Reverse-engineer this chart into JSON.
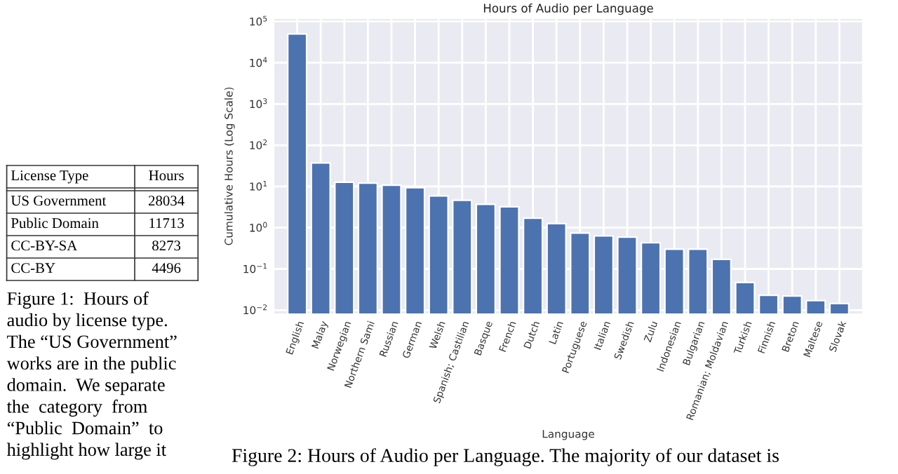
{
  "chart_data": [
    {
      "type": "other",
      "annotations": [
        "License Type",
        "Hours",
        "US Government",
        "28034",
        "Public Domain",
        "11713",
        "CC-BY-SA",
        "8273",
        "CC-BY",
        "4496",
        "Figure 1:  Hours of",
        "audio by license type.",
        "The “US Government”",
        "works are in the public",
        "domain.  We separate",
        "the  category  from",
        "“Public  Domain”  to",
        "highlight how large it"
      ]
    },
    {
      "type": "bar",
      "title": "Hours of Audio per Language",
      "xlabel": "Language",
      "ylabel": "Cumulative Hours (Log Scale)",
      "categories": [
        "English",
        "Malay",
        "Norwegian",
        "Northern Sami",
        "Russian",
        "German",
        "Welsh",
        "Spanish; Castilian",
        "Basque",
        "French",
        "Dutch",
        "Latin",
        "Portuguese",
        "Italian",
        "Swedish",
        "Zulu",
        "Indonesian",
        "Bulgarian",
        "Romanian; Moldavian",
        "Turkish",
        "Finnish",
        "Breton",
        "Maltese",
        "Slovak"
      ],
      "values": [
        50000,
        37,
        12.6,
        12,
        10.7,
        9.3,
        5.9,
        4.6,
        3.7,
        3.2,
        1.7,
        1.26,
        0.74,
        0.63,
        0.59,
        0.43,
        0.3,
        0.3,
        0.17,
        0.047,
        0.023,
        0.022,
        0.017,
        0.0145
      ],
      "color": "#4c72b0",
      "log": "y",
      "grid": true,
      "ylim": [
        0.008,
        120000
      ],
      "yticks": [
        {
          "value": 0.01,
          "label": "10$^{−2}$"
        },
        {
          "value": 0.1,
          "label": "10$^{−1}$"
        },
        {
          "value": 1,
          "label": "10$^{0}$"
        },
        {
          "value": 10,
          "label": "10$^{1}$"
        },
        {
          "value": 100,
          "label": "10$^{2}$"
        },
        {
          "value": 1000,
          "label": "10$^{3}$"
        },
        {
          "value": 10000,
          "label": "10$^{4}$"
        },
        {
          "value": 100000,
          "label": "10$^{5}$"
        }
      ],
      "annotations": [
        "Figure 2: Hours of Audio per Language. The majority of our dataset is"
      ]
    }
  ]
}
